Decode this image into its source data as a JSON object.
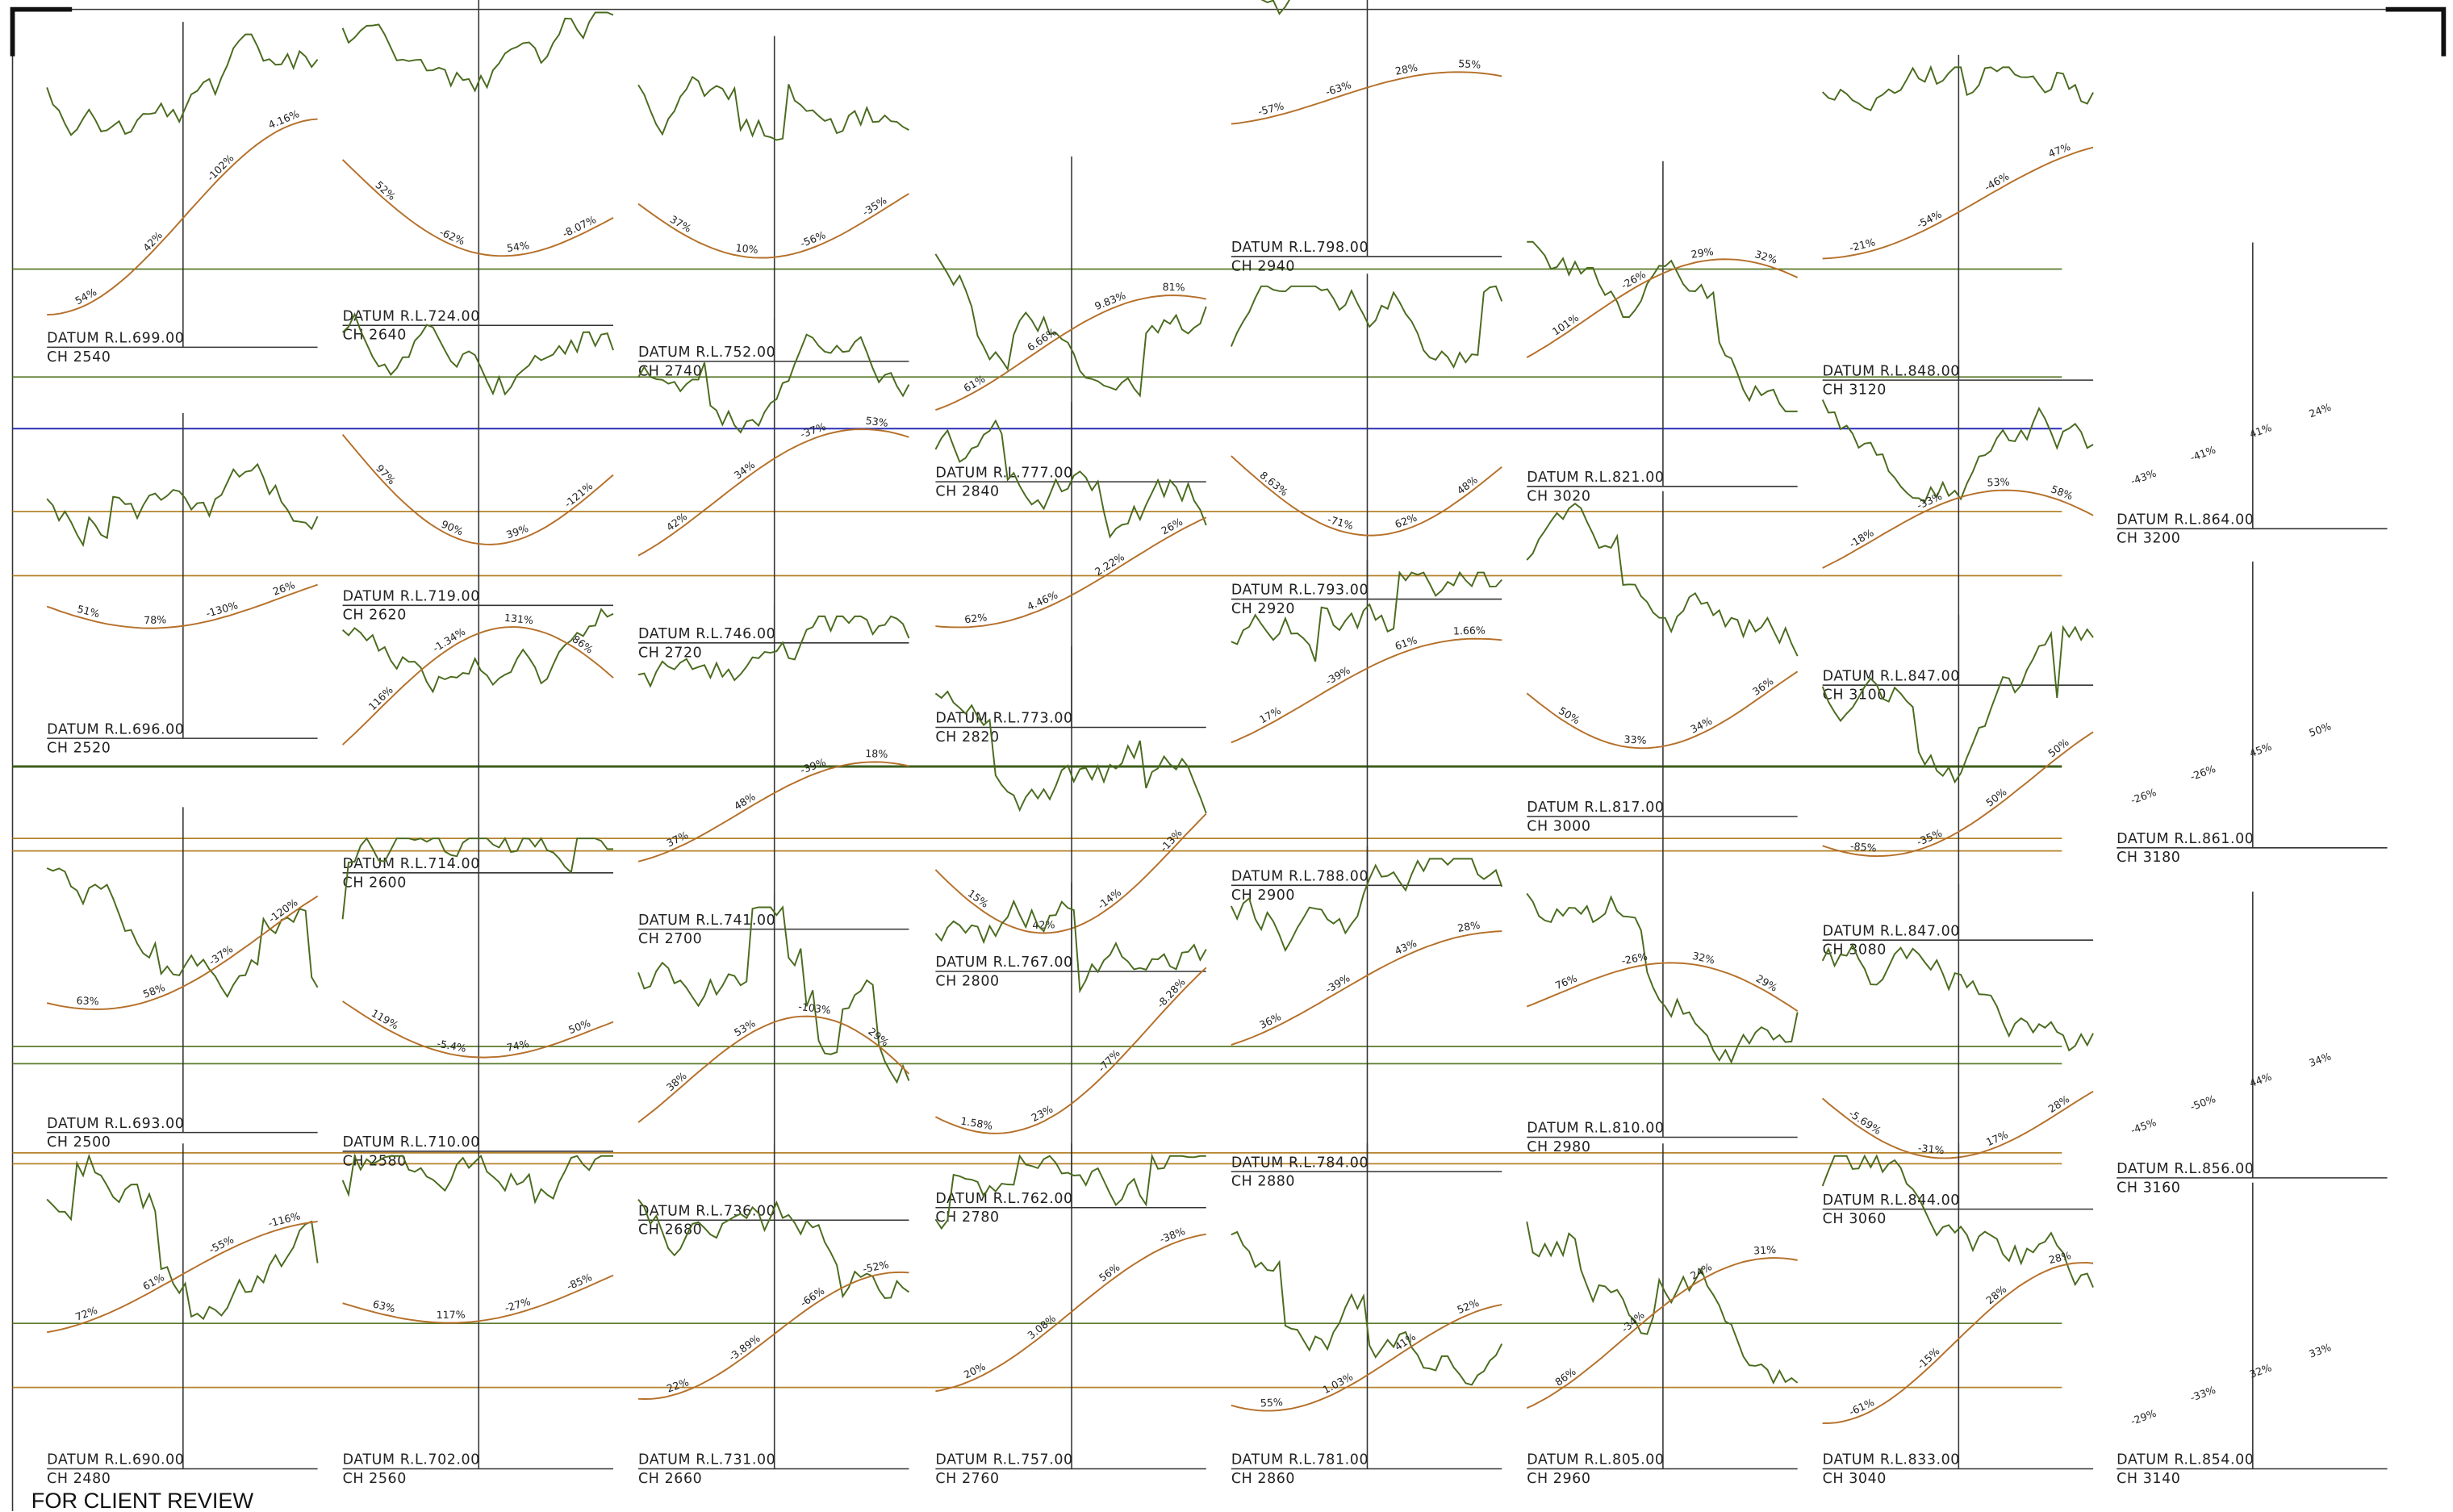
{
  "footer": "FOR CLIENT REVIEW",
  "sections": [
    {
      "datum": "DATUM R.L.699.00",
      "chainage": "CH 2540",
      "slopes": [
        "54%",
        "42%",
        "-102%",
        "4.16%"
      ]
    },
    {
      "datum": "DATUM R.L.696.00",
      "chainage": "CH 2520",
      "slopes": [
        "51%",
        "78%",
        "-130%",
        "26%"
      ]
    },
    {
      "datum": "DATUM R.L.693.00",
      "chainage": "CH 2500",
      "slopes": [
        "63%",
        "58%",
        "-37%",
        "-120%"
      ]
    },
    {
      "datum": "DATUM R.L.690.00",
      "chainage": "CH 2480",
      "slopes": [
        "72%",
        "61%",
        "-55%",
        "-116%"
      ]
    },
    {
      "datum": "DATUM R.L.724.00",
      "chainage": "CH 2640",
      "slopes": [
        "52%",
        "-62%",
        "54%",
        "-8.07%"
      ]
    },
    {
      "datum": "DATUM R.L.719.00",
      "chainage": "CH 2620",
      "slopes": [
        "97%",
        "90%",
        "39%",
        "-121%"
      ]
    },
    {
      "datum": "DATUM R.L.714.00",
      "chainage": "CH 2600",
      "slopes": [
        "116%",
        "-1.34%",
        "131%",
        "86%"
      ]
    },
    {
      "datum": "DATUM R.L.710.00",
      "chainage": "CH 2580",
      "slopes": [
        "119%",
        "-5.4%",
        "74%",
        "50%"
      ]
    },
    {
      "datum": "DATUM R.L.702.00",
      "chainage": "CH 2560",
      "slopes": [
        "63%",
        "117%",
        "-27%",
        "-85%"
      ]
    },
    {
      "datum": "DATUM R.L.752.00",
      "chainage": "CH 2740",
      "slopes": [
        "37%",
        "10%",
        "-56%",
        "-35%"
      ]
    },
    {
      "datum": "DATUM R.L.746.00",
      "chainage": "CH 2720",
      "slopes": [
        "42%",
        "34%",
        "-37%",
        "53%"
      ]
    },
    {
      "datum": "DATUM R.L.741.00",
      "chainage": "CH 2700",
      "slopes": [
        "37%",
        "48%",
        "-39%",
        "18%"
      ]
    },
    {
      "datum": "DATUM R.L.736.00",
      "chainage": "CH 2680",
      "slopes": [
        "38%",
        "53%",
        "-103%",
        "29%"
      ]
    },
    {
      "datum": "DATUM R.L.731.00",
      "chainage": "CH 2660",
      "slopes": [
        "22%",
        "-3.89%",
        "-66%",
        "-52%"
      ]
    },
    {
      "datum": "DATUM R.L.777.00",
      "chainage": "CH 2840",
      "slopes": [
        "61%",
        "6.66%",
        "9.83%",
        "81%"
      ]
    },
    {
      "datum": "DATUM R.L.773.00",
      "chainage": "CH 2820",
      "slopes": [
        "62%",
        "4.46%",
        "2.22%",
        "26%"
      ]
    },
    {
      "datum": "DATUM R.L.767.00",
      "chainage": "CH 2800",
      "slopes": [
        "15%",
        "42%",
        "-14%",
        "-13%"
      ]
    },
    {
      "datum": "DATUM R.L.762.00",
      "chainage": "CH 2780",
      "slopes": [
        "1.58%",
        "23%",
        "-77%",
        "-8.28%"
      ]
    },
    {
      "datum": "DATUM R.L.757.00",
      "chainage": "CH 2760",
      "slopes": [
        "20%",
        "3.08%",
        "56%",
        "-38%"
      ]
    },
    {
      "datum": "DATUM R.L.798.00",
      "chainage": "CH 2940",
      "slopes": [
        "-57%",
        "-63%",
        "28%",
        "55%"
      ]
    },
    {
      "datum": "DATUM R.L.793.00",
      "chainage": "CH 2920",
      "slopes": [
        "8.63%",
        "-71%",
        "62%",
        "48%"
      ]
    },
    {
      "datum": "DATUM R.L.788.00",
      "chainage": "CH 2900",
      "slopes": [
        "17%",
        "-39%",
        "61%",
        "1.66%"
      ]
    },
    {
      "datum": "DATUM R.L.784.00",
      "chainage": "CH 2880",
      "slopes": [
        "36%",
        "-39%",
        "43%",
        "28%"
      ]
    },
    {
      "datum": "DATUM R.L.781.00",
      "chainage": "CH 2860",
      "slopes": [
        "55%",
        "1.03%",
        "41%",
        "52%"
      ]
    },
    {
      "datum": "DATUM R.L.821.00",
      "chainage": "CH 3020",
      "slopes": [
        "101%",
        "-26%",
        "29%",
        "32%"
      ]
    },
    {
      "datum": "DATUM R.L.817.00",
      "chainage": "CH 3000",
      "slopes": [
        "50%",
        "33%",
        "34%",
        "36%"
      ]
    },
    {
      "datum": "DATUM R.L.810.00",
      "chainage": "CH 2980",
      "slopes": [
        "76%",
        "-26%",
        "32%",
        "29%"
      ]
    },
    {
      "datum": "DATUM R.L.805.00",
      "chainage": "CH 2960",
      "slopes": [
        "86%",
        "-34%",
        "24%",
        "31%"
      ]
    },
    {
      "datum": "DATUM R.L.848.00",
      "chainage": "CH 3120",
      "slopes": [
        "-21%",
        "-54%",
        "-46%",
        "47%"
      ]
    },
    {
      "datum": "DATUM R.L.847.00",
      "chainage": "CH 3100",
      "slopes": [
        "-18%",
        "-33%",
        "53%",
        "58%"
      ]
    },
    {
      "datum": "DATUM R.L.847.00",
      "chainage": "CH 3080",
      "slopes": [
        "-85%",
        "-35%",
        "50%",
        "50%"
      ]
    },
    {
      "datum": "DATUM R.L.844.00",
      "chainage": "CH 3060",
      "slopes": [
        "-5.69%",
        "-31%",
        "17%",
        "28%"
      ]
    },
    {
      "datum": "DATUM R.L.833.00",
      "chainage": "CH 3040",
      "slopes": [
        "-61%",
        "-15%",
        "28%",
        "28%"
      ]
    },
    {
      "datum": "DATUM R.L.864.00",
      "chainage": "CH 3200",
      "slopes": [
        "-43%",
        "-41%",
        "41%",
        "24%"
      ]
    },
    {
      "datum": "DATUM R.L.861.00",
      "chainage": "CH 3180",
      "slopes": [
        "-26%",
        "-26%",
        "45%",
        "50%"
      ]
    },
    {
      "datum": "DATUM R.L.856.00",
      "chainage": "CH 3160",
      "slopes": [
        "-45%",
        "-50%",
        "44%",
        "34%"
      ]
    },
    {
      "datum": "DATUM R.L.854.00",
      "chainage": "CH 3140",
      "slopes": [
        "-29%",
        "-33%",
        "32%",
        "33%"
      ]
    }
  ]
}
